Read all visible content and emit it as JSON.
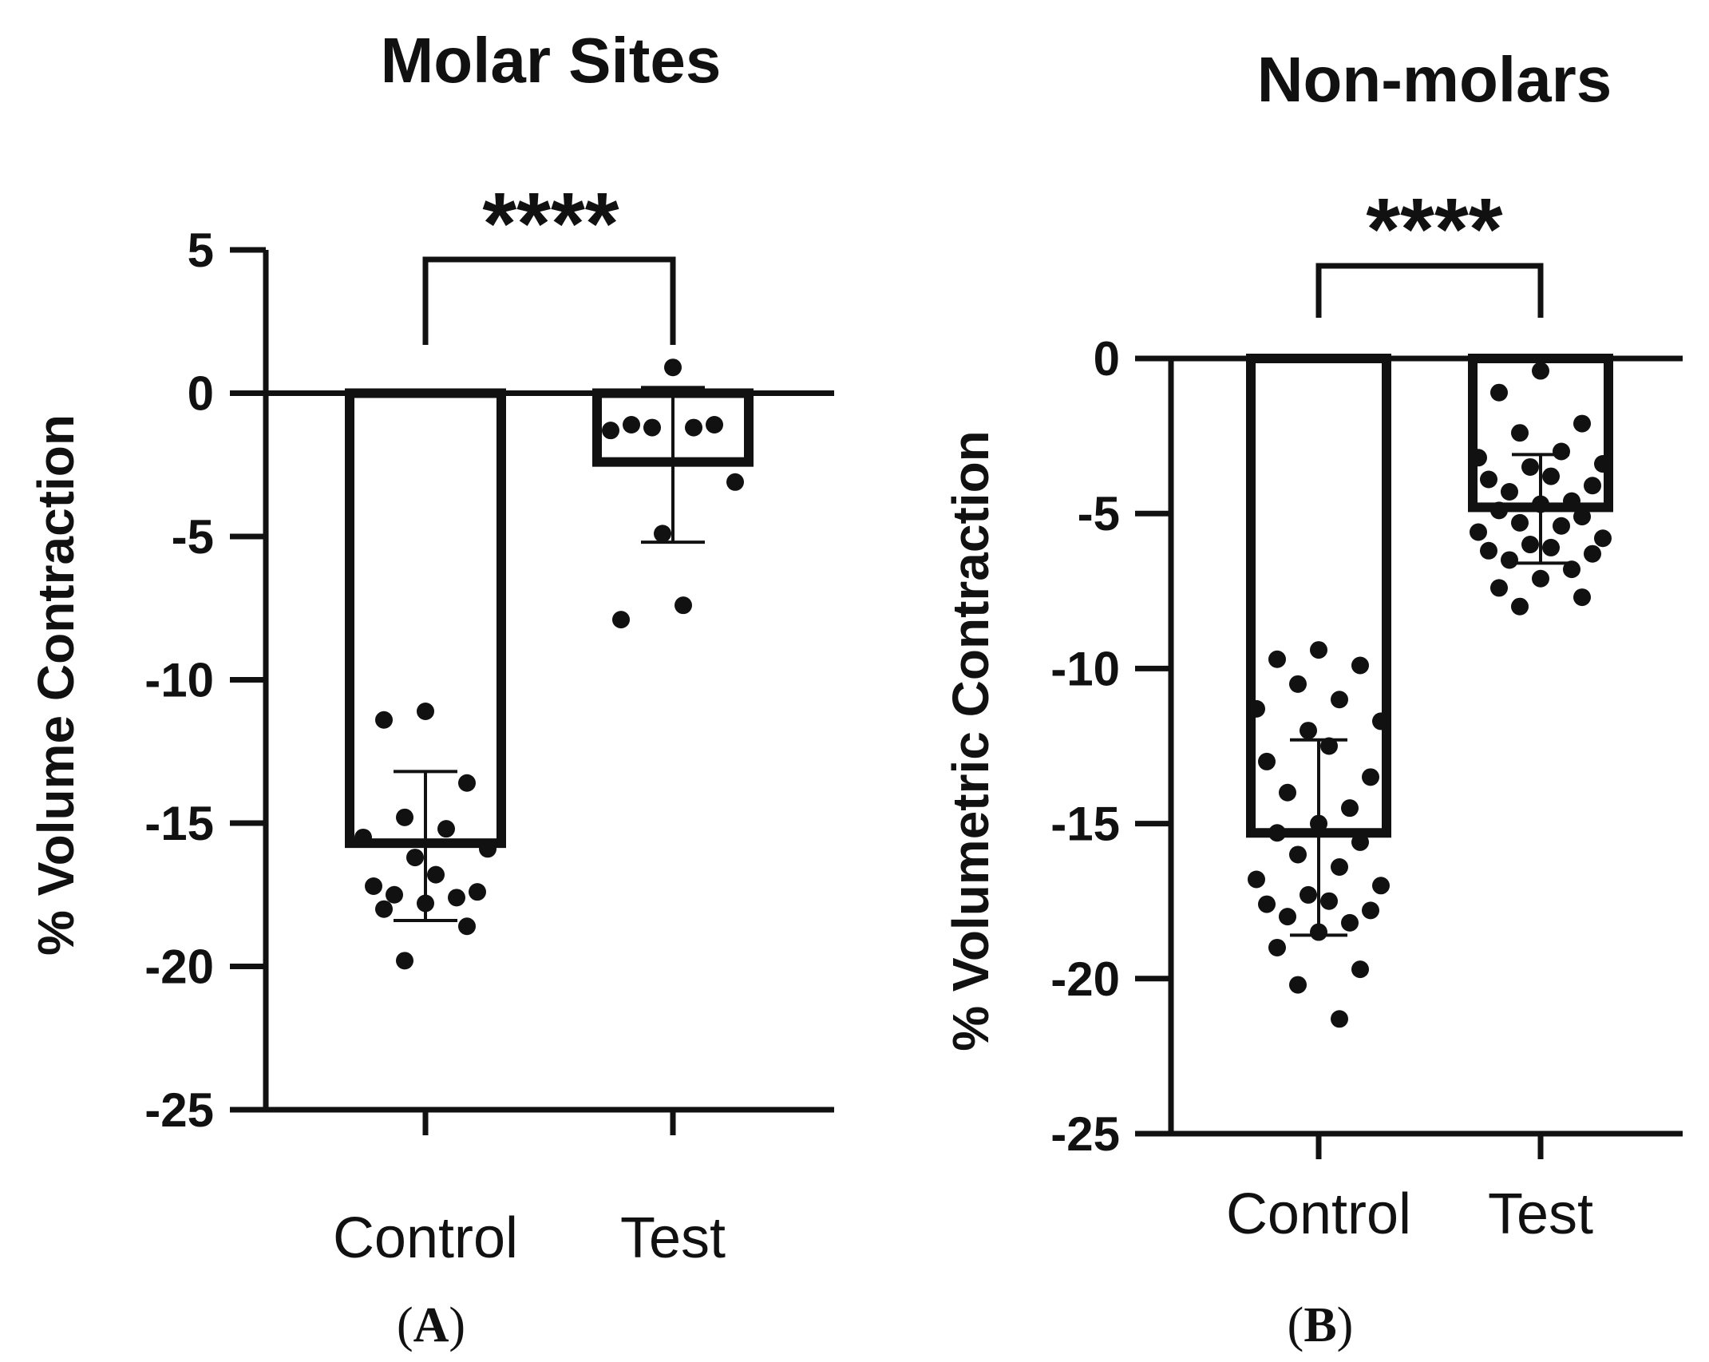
{
  "colors": {
    "ink": "#111111",
    "background": "#ffffff"
  },
  "chart_data": [
    {
      "panel": "A",
      "panel_label": {
        "open": "(",
        "letter": "A",
        "close": ")"
      },
      "type": "bar",
      "title": "Molar Sites",
      "ylabel": "% Volume Contraction",
      "xlabel": "",
      "categories": [
        "Control",
        "Test"
      ],
      "ylim": [
        -25,
        5
      ],
      "yticks": [
        5,
        0,
        -5,
        -10,
        -15,
        -20,
        -25
      ],
      "ytick_labels": [
        "5",
        "0",
        "-5",
        "-10",
        "-15",
        "-20",
        "-25"
      ],
      "bars": [
        {
          "category": "Control",
          "mean": -15.7,
          "sd_low": -18.4,
          "sd_high": -13.2
        },
        {
          "category": "Test",
          "mean": -2.4,
          "sd_low": -5.2,
          "sd_high": 0.2
        }
      ],
      "points": [
        {
          "category": "Control",
          "values": [
            -11.1,
            -11.4,
            -13.6,
            -14.8,
            -15.2,
            -15.5,
            -15.9,
            -16.2,
            -16.8,
            -17.2,
            -17.4,
            -17.5,
            -17.6,
            -17.8,
            -18.0,
            -18.6,
            -19.8
          ]
        },
        {
          "category": "Test",
          "values": [
            0.9,
            -1.1,
            -1.1,
            -1.2,
            -1.2,
            -1.3,
            -3.1,
            -4.9,
            -7.4,
            -7.9
          ]
        }
      ],
      "significance": {
        "label": "****",
        "between": [
          "Control",
          "Test"
        ]
      }
    },
    {
      "panel": "B",
      "panel_label": {
        "open": "(",
        "letter": "B",
        "close": ")"
      },
      "type": "bar",
      "title": "Non-molars",
      "ylabel": "% Volumetric Contraction",
      "xlabel": "",
      "categories": [
        "Control",
        "Test"
      ],
      "ylim": [
        -25,
        0
      ],
      "yticks": [
        0,
        -5,
        -10,
        -15,
        -20,
        -25
      ],
      "ytick_labels": [
        "0",
        "-5",
        "-10",
        "-15",
        "-20",
        "-25"
      ],
      "bars": [
        {
          "category": "Control",
          "mean": -15.3,
          "sd_low": -18.6,
          "sd_high": -12.3
        },
        {
          "category": "Test",
          "mean": -4.8,
          "sd_low": -6.6,
          "sd_high": -3.1
        }
      ],
      "points": [
        {
          "category": "Control",
          "values": [
            -9.4,
            -9.7,
            -9.9,
            -10.5,
            -11.0,
            -11.3,
            -11.7,
            -12.0,
            -12.5,
            -13.0,
            -13.5,
            -14.0,
            -14.5,
            -15.0,
            -15.3,
            -15.6,
            -16.0,
            -16.4,
            -16.8,
            -17.0,
            -17.3,
            -17.5,
            -17.6,
            -17.8,
            -18.0,
            -18.2,
            -18.5,
            -19.0,
            -19.7,
            -20.2,
            -21.3
          ]
        },
        {
          "category": "Test",
          "values": [
            -0.4,
            -1.1,
            -2.1,
            -2.4,
            -3.0,
            -3.2,
            -3.4,
            -3.5,
            -3.8,
            -3.9,
            -4.1,
            -4.3,
            -4.6,
            -4.7,
            -4.9,
            -5.1,
            -5.3,
            -5.4,
            -5.6,
            -5.8,
            -6.0,
            -6.1,
            -6.2,
            -6.3,
            -6.5,
            -6.8,
            -7.1,
            -7.4,
            -7.7,
            -8.0
          ]
        }
      ],
      "significance": {
        "label": "****",
        "between": [
          "Control",
          "Test"
        ]
      }
    }
  ]
}
